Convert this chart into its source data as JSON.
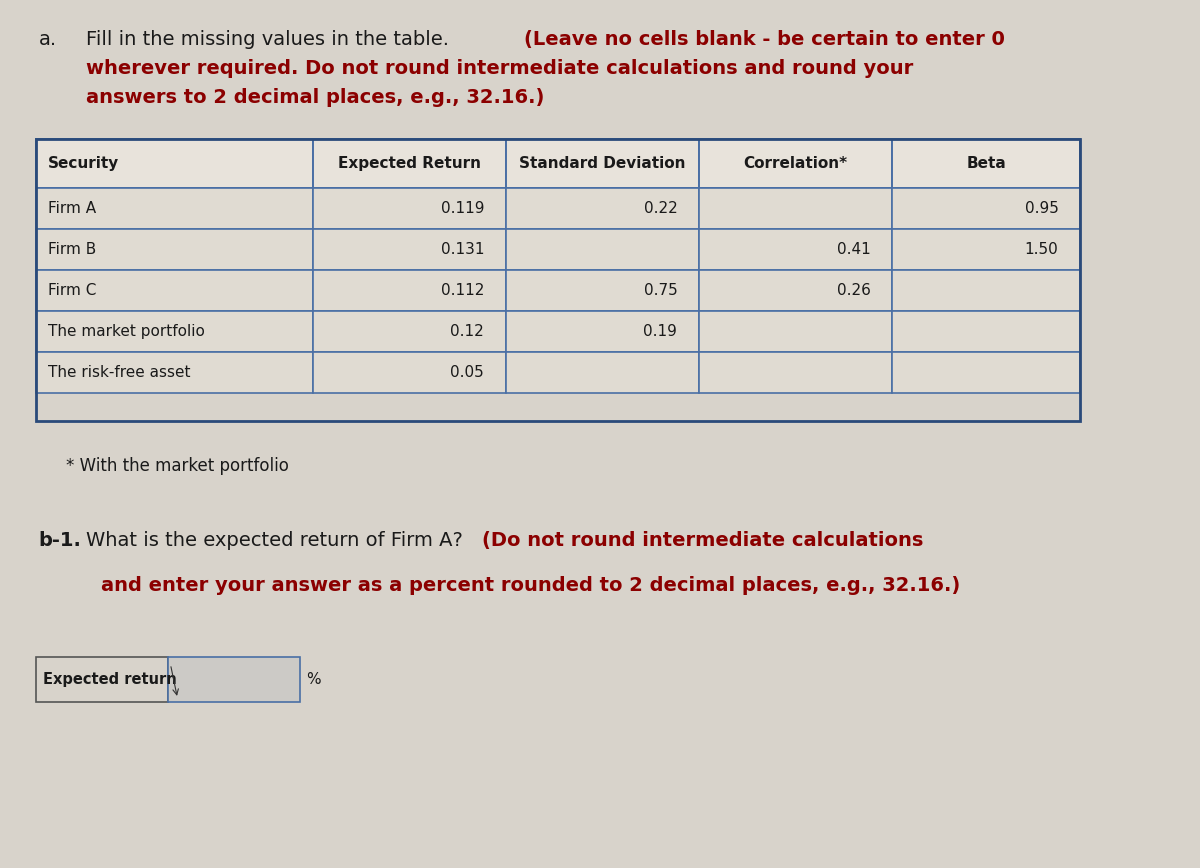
{
  "bg_color": "#d8d3cb",
  "table_bg_header": "#e8e4dd",
  "table_bg_data": "#e4dfd8",
  "table_border_color": "#4a6fa5",
  "table_border_outer": "#2a4a7a",
  "title_prefix": "a.",
  "title_normal": "Fill in the missing values in the table.",
  "title_bold_part": "(Leave no cells blank - be certain to enter 0",
  "title_bold_2": "wherever required. Do not round intermediate calculations and round your",
  "title_bold_3": "answers to 2 decimal places, e.g., 32.16.)",
  "table_headers": [
    "Security",
    "Expected Return",
    "Standard Deviation",
    "Correlation*",
    "Beta"
  ],
  "table_rows": [
    [
      "Firm A",
      "0.119",
      "0.22",
      "",
      "0.95"
    ],
    [
      "Firm B",
      "0.131",
      "",
      "0.41",
      "1.50"
    ],
    [
      "Firm C",
      "0.112",
      "0.75",
      "0.26",
      ""
    ],
    [
      "The market portfolio",
      "0.12",
      "0.19",
      "",
      ""
    ],
    [
      "The risk-free asset",
      "0.05",
      "",
      "",
      ""
    ]
  ],
  "footnote": "* With the market portfolio",
  "b1_normal": "b-1. What is the expected return of Firm A?",
  "b1_bold": "(Do not round intermediate calculations",
  "b1_bold2": "and enter your answer as a percent rounded to 2 decimal places, e.g., 32.16.)",
  "input_label": "Expected return",
  "input_suffix": "%",
  "text_color": "#1a1a1a",
  "bold_red": "#8b0000",
  "footnote_color": "#1a1a1a",
  "label_box_bg": "#d8d3cb",
  "input_box_bg": "#cccac6",
  "percent_box_bg": "#c0bdb8"
}
